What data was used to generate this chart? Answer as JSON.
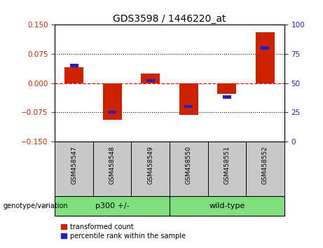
{
  "title": "GDS3598 / 1446220_at",
  "samples": [
    "GSM458547",
    "GSM458548",
    "GSM458549",
    "GSM458550",
    "GSM458551",
    "GSM458552"
  ],
  "red_values": [
    0.04,
    -0.095,
    0.025,
    -0.082,
    -0.028,
    0.13
  ],
  "blue_values_pct": [
    65,
    25,
    52,
    30,
    38,
    80
  ],
  "group_label_prefix": "genotype/variation",
  "group_configs": [
    {
      "label": "p300 +/-",
      "start": 0,
      "end": 2,
      "color": "#7EE07E"
    },
    {
      "label": "wild-type",
      "start": 3,
      "end": 5,
      "color": "#7EE07E"
    }
  ],
  "ylim_left": [
    -0.15,
    0.15
  ],
  "ylim_right": [
    0,
    100
  ],
  "yticks_left": [
    -0.15,
    -0.075,
    0,
    0.075,
    0.15
  ],
  "yticks_right": [
    0,
    25,
    50,
    75,
    100
  ],
  "red_color": "#CC2200",
  "blue_color": "#2222BB",
  "bar_width": 0.5,
  "blue_bar_width": 0.22,
  "blue_bar_height": 0.008,
  "legend_items": [
    "transformed count",
    "percentile rank within the sample"
  ]
}
